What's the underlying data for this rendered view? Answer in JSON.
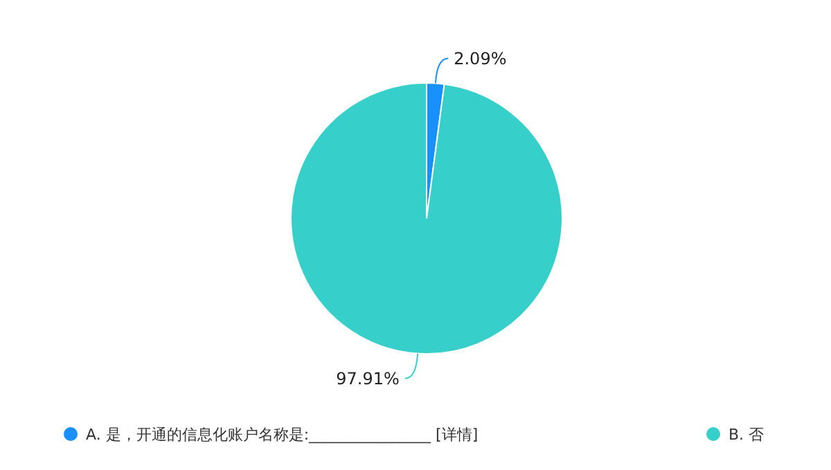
{
  "chart_data": {
    "type": "pie",
    "categories": [
      "A. 是，开通的信息化账户名称是:________________ [详情]",
      "B. 否"
    ],
    "values": [
      2.09,
      97.91
    ],
    "colors": [
      "#1890ff",
      "#36cfc9"
    ],
    "value_labels": [
      "2.09%",
      "97.91%"
    ],
    "legend": "bottom"
  }
}
